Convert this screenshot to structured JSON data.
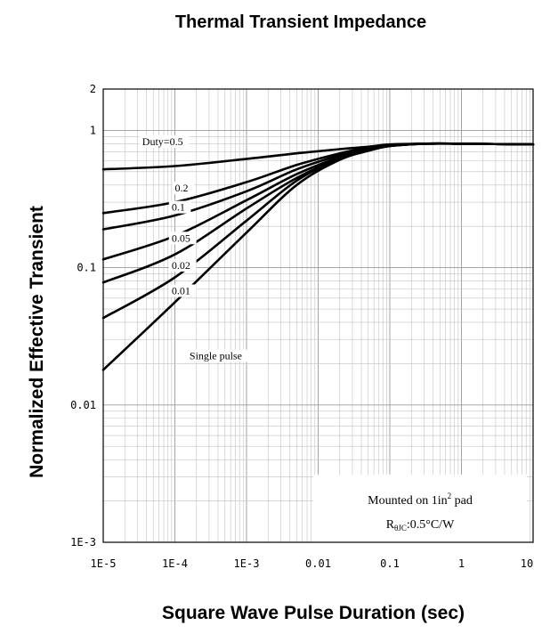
{
  "chart_data": {
    "type": "line",
    "title": "Thermal Transient Impedance",
    "xlabel": "Square Wave Pulse Duration (sec)",
    "ylabel": "Normalized Effective Transient",
    "x_scale": "log",
    "y_scale": "log",
    "xlim": [
      1e-05,
      10
    ],
    "ylim": [
      0.001,
      2
    ],
    "grid": true,
    "x_ticks": [
      {
        "value": 1e-05,
        "label": "1E-5"
      },
      {
        "value": 0.0001,
        "label": "1E-4"
      },
      {
        "value": 0.001,
        "label": "1E-3"
      },
      {
        "value": 0.01,
        "label": "0.01"
      },
      {
        "value": 0.1,
        "label": "0.1"
      },
      {
        "value": 1,
        "label": "1"
      },
      {
        "value": 10,
        "label": "10"
      }
    ],
    "y_ticks": [
      {
        "value": 2,
        "label": "2"
      },
      {
        "value": 1,
        "label": "1"
      },
      {
        "value": 0.1,
        "label": "0.1"
      },
      {
        "value": 0.01,
        "label": "0.01"
      },
      {
        "value": 0.001,
        "label": "1E-3"
      }
    ],
    "series": [
      {
        "name": "Duty=0.5",
        "x": [
          1e-05,
          0.0001,
          0.001,
          0.005,
          0.02,
          0.05,
          0.1,
          0.3,
          1,
          10
        ],
        "y": [
          0.52,
          0.55,
          0.62,
          0.68,
          0.73,
          0.76,
          0.79,
          0.8,
          0.8,
          0.79
        ]
      },
      {
        "name": "0.2",
        "x": [
          1e-05,
          0.0001,
          0.001,
          0.005,
          0.02,
          0.05,
          0.1,
          0.3,
          1,
          10
        ],
        "y": [
          0.25,
          0.3,
          0.42,
          0.56,
          0.68,
          0.75,
          0.78,
          0.8,
          0.8,
          0.79
        ]
      },
      {
        "name": "0.1",
        "x": [
          1e-05,
          0.0001,
          0.001,
          0.005,
          0.02,
          0.05,
          0.1,
          0.3,
          1,
          10
        ],
        "y": [
          0.19,
          0.24,
          0.36,
          0.52,
          0.66,
          0.74,
          0.78,
          0.8,
          0.8,
          0.79
        ]
      },
      {
        "name": "0.05",
        "x": [
          1e-05,
          0.0001,
          0.001,
          0.005,
          0.02,
          0.05,
          0.1,
          0.3,
          1,
          10
        ],
        "y": [
          0.115,
          0.17,
          0.31,
          0.48,
          0.64,
          0.73,
          0.77,
          0.8,
          0.8,
          0.79
        ]
      },
      {
        "name": "0.02",
        "x": [
          1e-05,
          0.0001,
          0.001,
          0.005,
          0.02,
          0.05,
          0.1,
          0.3,
          1,
          10
        ],
        "y": [
          0.078,
          0.125,
          0.27,
          0.45,
          0.63,
          0.72,
          0.77,
          0.8,
          0.8,
          0.79
        ]
      },
      {
        "name": "0.01",
        "x": [
          1e-05,
          0.0001,
          0.001,
          0.005,
          0.02,
          0.05,
          0.1,
          0.3,
          1,
          10
        ],
        "y": [
          0.043,
          0.085,
          0.22,
          0.43,
          0.62,
          0.72,
          0.77,
          0.8,
          0.8,
          0.79
        ]
      },
      {
        "name": "Single pulse",
        "x": [
          1e-05,
          0.0001,
          0.001,
          0.005,
          0.02,
          0.05,
          0.1,
          0.3,
          1,
          10
        ],
        "y": [
          0.018,
          0.056,
          0.18,
          0.4,
          0.61,
          0.71,
          0.77,
          0.8,
          0.8,
          0.79
        ]
      }
    ],
    "curve_labels": [
      {
        "text": "Duty=0.5",
        "x": 3.5e-05,
        "y": 0.78
      },
      {
        "text": "0.2",
        "x": 0.0001,
        "y": 0.36
      },
      {
        "text": "0.1",
        "x": 9e-05,
        "y": 0.26
      },
      {
        "text": "0.05",
        "x": 9e-05,
        "y": 0.155
      },
      {
        "text": "0.02",
        "x": 9e-05,
        "y": 0.098
      },
      {
        "text": "0.01",
        "x": 9e-05,
        "y": 0.064
      },
      {
        "text": "Single pulse",
        "x": 0.00016,
        "y": 0.0215
      }
    ],
    "annotation": {
      "line1_prefix": "Mounted on 1in",
      "line1_sup": "2",
      "line1_suffix": " pad",
      "line2_prefix": "R",
      "line2_sub": "θJC",
      "line2_suffix": ":0.5°C/W"
    }
  }
}
